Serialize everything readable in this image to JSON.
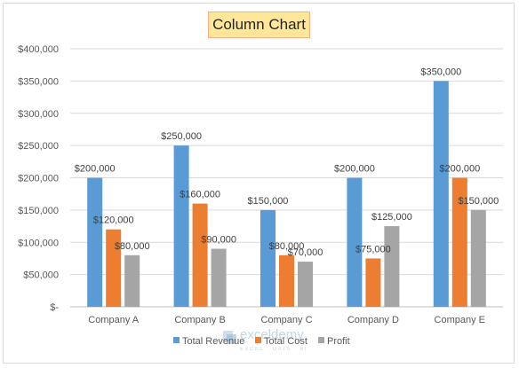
{
  "chart_data": {
    "type": "bar",
    "title": "Column Chart",
    "categories": [
      "Company A",
      "Company B",
      "Company C",
      "Company D",
      "Company E"
    ],
    "series": [
      {
        "name": "Total Revenue",
        "color": "#5b9bd5",
        "values": [
          200000,
          250000,
          150000,
          200000,
          350000
        ],
        "labels": [
          "$200,000",
          "$250,000",
          "$150,000",
          "$200,000",
          "$350,000"
        ]
      },
      {
        "name": "Total Cost",
        "color": "#ed7d31",
        "values": [
          120000,
          160000,
          80000,
          75000,
          200000
        ],
        "labels": [
          "$120,000",
          "$160,000",
          "$80,000",
          "$75,000",
          "$200,000"
        ]
      },
      {
        "name": "Profit",
        "color": "#a5a5a5",
        "values": [
          80000,
          90000,
          70000,
          125000,
          150000
        ],
        "labels": [
          "$80,000",
          "$90,000",
          "$70,000",
          "$125,000",
          "$150,000"
        ]
      }
    ],
    "y_ticks": [
      0,
      50000,
      100000,
      150000,
      200000,
      250000,
      300000,
      350000,
      400000
    ],
    "y_tick_labels": [
      "$-",
      "$50,000",
      "$100,000",
      "$150,000",
      "$200,000",
      "$250,000",
      "$300,000",
      "$350,000",
      "$400,000"
    ],
    "ylim": [
      0,
      400000
    ],
    "grid": true,
    "legend": "bottom"
  },
  "watermark": {
    "name": "exceldemy",
    "tagline": "EXCEL · DATA · BI"
  }
}
